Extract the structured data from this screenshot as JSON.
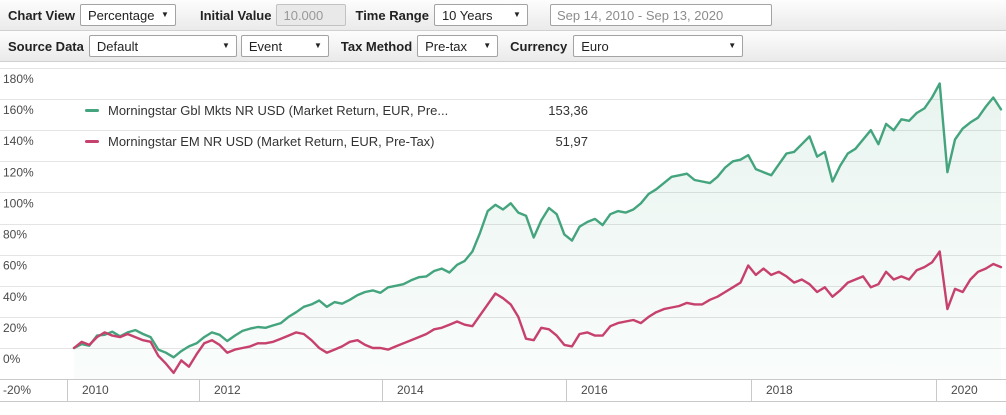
{
  "toolbar": {
    "row1": {
      "chart_view_label": "Chart View",
      "chart_view_value": "Percentage",
      "initial_value_label": "Initial Value",
      "initial_value": "10.000",
      "time_range_label": "Time Range",
      "time_range_value": "10 Years",
      "date_range": "Sep 14, 2010 - Sep 13, 2020"
    },
    "row2": {
      "source_data_label": "Source Data",
      "source_data_value": "Default",
      "event_value": "Event",
      "tax_method_label": "Tax Method",
      "tax_method_value": "Pre-tax",
      "currency_label": "Currency",
      "currency_value": "Euro"
    }
  },
  "chart_data": {
    "type": "line",
    "title": "",
    "xlabel": "",
    "ylabel": "",
    "ylim": [
      -20,
      180
    ],
    "yticks": [
      180,
      160,
      140,
      120,
      100,
      80,
      60,
      40,
      20,
      0,
      -20
    ],
    "ytick_suffix": "%",
    "xticks": [
      "2010",
      "2012",
      "2014",
      "2016",
      "2018",
      "2020"
    ],
    "x_range": [
      "Sep 14, 2010",
      "Sep 13, 2020"
    ],
    "x_unit": "monthly",
    "grid": true,
    "legend_position": "top-left",
    "colors": {
      "grid": "#e4e4e4",
      "axis": "#c9c9c9",
      "tick_text": "#4a4a4a"
    },
    "series": [
      {
        "name": "Morningstar Gbl Mkts NR USD (Market Return, EUR, Pre...",
        "display_value": "153,36",
        "color": "#44a47e",
        "fill": true,
        "values": [
          0,
          2.5,
          1.5,
          8,
          8.5,
          10.5,
          7.5,
          10,
          11.5,
          9,
          7,
          -1,
          -3,
          -6,
          -2,
          1,
          3,
          7,
          10,
          8.5,
          4.5,
          8,
          11,
          12.5,
          13.5,
          13,
          14.5,
          16,
          20,
          23,
          26.5,
          28,
          30.5,
          26.5,
          29.5,
          28.5,
          31,
          34,
          36,
          37,
          35.5,
          39,
          40,
          41,
          43.5,
          45.5,
          46,
          49.5,
          51,
          48.5,
          53.5,
          56,
          62,
          74,
          88,
          92,
          89,
          93,
          87,
          85,
          71,
          82,
          90,
          86,
          73,
          69,
          78,
          81,
          83,
          79,
          86,
          88,
          87,
          89,
          93,
          99,
          102,
          106,
          110,
          111,
          112,
          108,
          107,
          106,
          110,
          116,
          120,
          121,
          124,
          115,
          113,
          111,
          118,
          125,
          126,
          131,
          136,
          123,
          126,
          107,
          117,
          125,
          128,
          134,
          140,
          131,
          144,
          140,
          147,
          146,
          151,
          154,
          161,
          170,
          113,
          134,
          141,
          145,
          148,
          155,
          161,
          153.36
        ]
      },
      {
        "name": "Morningstar EM NR USD (Market Return, EUR, Pre-Tax)",
        "display_value": "51,97",
        "color": "#c7416d",
        "fill": false,
        "values": [
          0,
          4,
          2,
          7,
          10,
          8,
          7,
          9,
          7,
          5,
          4,
          -5,
          -10,
          -16,
          -8,
          -12,
          -4,
          3,
          5,
          2,
          -3,
          -1,
          0,
          1,
          3,
          3,
          4,
          6,
          8,
          10,
          9,
          5,
          0,
          -3,
          -1,
          1,
          4,
          5,
          2,
          0,
          0,
          -1,
          1,
          3,
          5,
          7,
          9,
          12,
          13,
          15,
          17,
          15,
          14,
          21,
          28,
          35,
          32,
          28,
          20,
          6,
          5,
          13,
          12,
          8,
          2,
          1,
          9,
          10,
          8,
          8,
          14,
          16,
          17,
          18,
          16,
          20,
          23,
          25,
          26,
          27,
          29,
          28,
          28,
          31,
          33,
          36,
          39,
          42,
          53,
          47,
          51,
          47,
          49,
          46,
          42,
          44,
          41,
          36,
          39,
          33,
          37,
          42,
          44,
          46,
          39,
          41,
          49,
          44,
          46,
          44,
          50,
          52,
          55,
          62,
          25,
          38,
          36,
          44,
          49,
          51,
          54,
          51.97
        ]
      }
    ]
  }
}
